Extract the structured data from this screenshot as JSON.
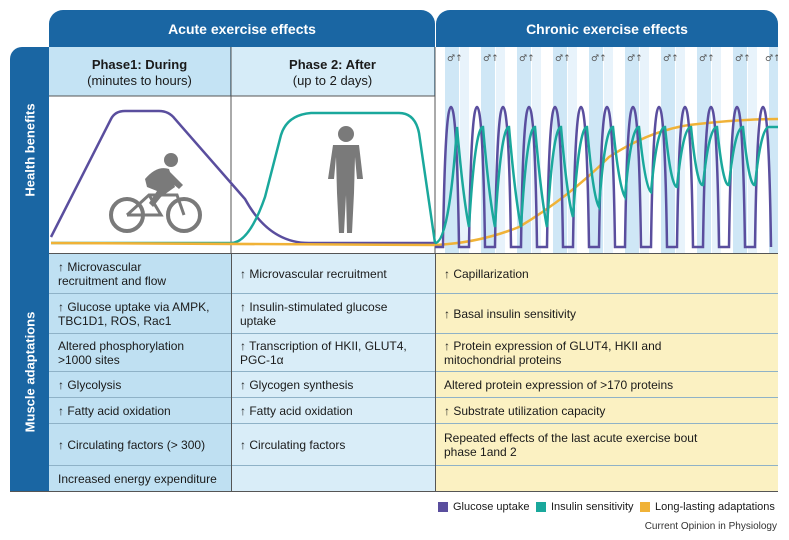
{
  "headers": {
    "acute": "Acute exercise effects",
    "chronic": "Chronic exercise effects",
    "health": "Health benefits",
    "muscle": "Muscle adaptations"
  },
  "phases": [
    {
      "title": "Phase1: During",
      "subtitle": "(minutes to hours)"
    },
    {
      "title": "Phase 2: After",
      "subtitle": "(up to 2 days)"
    }
  ],
  "rows": [
    {
      "phase1": "↑ Microvascular\nrecruitment and flow",
      "phase2": "↑  Microvascular recruitment",
      "chronic": "↑  Capillarization"
    },
    {
      "phase1": "↑ Glucose uptake via AMPK,\nTBC1D1, ROS, Rac1",
      "phase2": "↑  Insulin-stimulated glucose\nuptake",
      "chronic": "↑  Basal insulin sensitivity"
    },
    {
      "phase1": "Altered phosphorylation\n>1000 sites",
      "phase2": "↑  Transcription of HKII, GLUT4,\nPGC-1α",
      "chronic": "↑  Protein expression of GLUT4, HKII and\nmitochondrial proteins"
    },
    {
      "phase1": "↑ Glycolysis",
      "phase2": "↑  Glycogen synthesis",
      "chronic": "Altered protein expression of >170 proteins"
    },
    {
      "phase1": "↑ Fatty acid oxidation",
      "phase2": "↑  Fatty acid oxidation",
      "chronic": "↑  Substrate utilization capacity"
    },
    {
      "phase1": "↑ Circulating factors (> 300)",
      "phase2": "↑  Circulating factors",
      "chronic": "Repeated effects of the last acute exercise bout\nphase 1and 2"
    },
    {
      "phase1": "Increased energy expenditure",
      "phase2": "",
      "chronic": ""
    }
  ],
  "legend": [
    {
      "label": "Glucose uptake",
      "color": "#5a4e9e"
    },
    {
      "label": "Insulin sensitivity",
      "color": "#1aa89c"
    },
    {
      "label": "Long-lasting adaptations",
      "color": "#f0b237"
    }
  ],
  "footer": "Current Opinion in Physiology",
  "colors": {
    "header": "#1a66a3",
    "glucose": "#5a4e9e",
    "insulin": "#1aa89c",
    "longlasting": "#f0b237"
  },
  "icons": [
    "cyclist-icon",
    "standing-person-icon",
    "small-cyclist-icon",
    "up-arrow-icon"
  ]
}
